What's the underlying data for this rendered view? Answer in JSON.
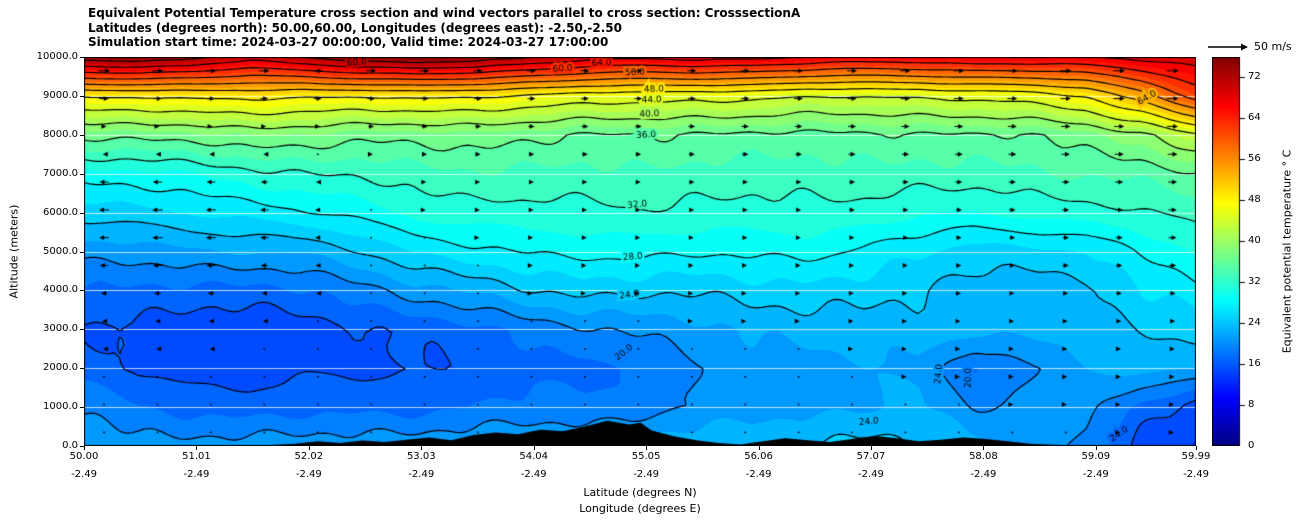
{
  "header": {
    "title_line1": "Equivalent Potential Temperature cross section and wind vectors parallel to cross section: CrosssectionA",
    "title_line2": "Latitudes (degrees north): 50.00,60.00, Longitudes (degrees east): -2.50,-2.50",
    "title_line3": "Simulation start time: 2024-03-27 00:00:00, Valid time: 2024-03-27 17:00:00"
  },
  "wind_legend": {
    "label": "50 m/s",
    "reference_speed": 50
  },
  "chart_data": {
    "type": "heatmap",
    "title": "Equivalent Potential Temperature cross section and wind vectors parallel to cross section: CrosssectionA",
    "xlabel_lat": "Latitude (degrees N)",
    "xlabel_lon": "Longitude (degrees E)",
    "ylabel": "Altitude (meters)",
    "x_axis": {
      "range": [
        50.0,
        59.99
      ],
      "lat_ticks": [
        "50.00",
        "51.01",
        "52.02",
        "53.03",
        "54.04",
        "55.05",
        "56.06",
        "57.07",
        "58.08",
        "59.09",
        "59.99"
      ],
      "lon_ticks": [
        "-2.49",
        "-2.49",
        "-2.49",
        "-2.49",
        "-2.49",
        "-2.49",
        "-2.49",
        "-2.49",
        "-2.49",
        "-2.49",
        "-2.49"
      ]
    },
    "y_axis": {
      "range": [
        0,
        10000
      ],
      "ticks": [
        "0.0",
        "1000.0",
        "2000.0",
        "3000.0",
        "4000.0",
        "5000.0",
        "6000.0",
        "7000.0",
        "8000.0",
        "9000.0",
        "10000.0"
      ]
    },
    "colorbar": {
      "label": "Equivalent potential temperature ° C",
      "ticks": [
        0,
        8,
        16,
        24,
        32,
        40,
        48,
        56,
        64,
        72
      ],
      "vmin": 0,
      "vmax": 76,
      "colormap": "jet"
    },
    "contour_levels": [
      16,
      20,
      24,
      28,
      32,
      36,
      40,
      44,
      48,
      52,
      56,
      60,
      64,
      68,
      72
    ],
    "contour_labels": [
      {
        "text": "20.0",
        "lat": 54.85,
        "alt": 2400,
        "rot": -38
      },
      {
        "text": "24.0",
        "lat": 54.9,
        "alt": 3880,
        "rot": -8
      },
      {
        "text": "28.0",
        "lat": 54.93,
        "alt": 4860,
        "rot": -5
      },
      {
        "text": "32.0",
        "lat": 54.97,
        "alt": 6200,
        "rot": -6
      },
      {
        "text": "36.0",
        "lat": 55.05,
        "alt": 7990,
        "rot": -3
      },
      {
        "text": "40.0",
        "lat": 55.08,
        "alt": 8530,
        "rot": -3
      },
      {
        "text": "44.0",
        "lat": 55.1,
        "alt": 8890,
        "rot": -2
      },
      {
        "text": "48.0",
        "lat": 55.12,
        "alt": 9170,
        "rot": -2
      },
      {
        "text": "56.0",
        "lat": 54.95,
        "alt": 9600,
        "rot": -2
      },
      {
        "text": "60.0",
        "lat": 54.3,
        "alt": 9700,
        "rot": -4
      },
      {
        "text": "64.0",
        "lat": 54.65,
        "alt": 9840,
        "rot": -3
      },
      {
        "text": "60.0",
        "lat": 52.45,
        "alt": 9860,
        "rot": -5
      },
      {
        "text": "64.0",
        "lat": 59.55,
        "alt": 8950,
        "rot": -30
      },
      {
        "text": "24.0",
        "lat": 57.05,
        "alt": 620,
        "rot": -5
      },
      {
        "text": "24.0",
        "lat": 57.68,
        "alt": 1850,
        "rot": -85
      },
      {
        "text": "20.0",
        "lat": 57.95,
        "alt": 1750,
        "rot": -90
      },
      {
        "text": "24.0",
        "lat": 59.3,
        "alt": 300,
        "rot": -35
      }
    ],
    "theta_e": {
      "units": "C",
      "lats": [
        50,
        50.5,
        51,
        51.5,
        52,
        52.5,
        53,
        53.5,
        54,
        54.5,
        55,
        55.5,
        56,
        56.5,
        57,
        57.5,
        58,
        58.5,
        59,
        59.5,
        60
      ],
      "z_levels": [
        0,
        1000,
        2000,
        3000,
        4000,
        5000,
        6000,
        7000,
        8000,
        9000,
        10000
      ],
      "values": [
        [
          21.5,
          21,
          21,
          21,
          21,
          21.5,
          21.5,
          21.5,
          22,
          22.5,
          23,
          23.5,
          24,
          24.5,
          24.5,
          24,
          23,
          21,
          19,
          15,
          14
        ],
        [
          19.5,
          18,
          17.5,
          17,
          17,
          17.5,
          17.5,
          18,
          18.5,
          18.5,
          19,
          20,
          21,
          21.5,
          22,
          22,
          20,
          20.5,
          21,
          17,
          15
        ],
        [
          17,
          15.5,
          15,
          15,
          15.5,
          15.5,
          16,
          16.5,
          17,
          17.5,
          18.5,
          20,
          21,
          21.5,
          22,
          21.5,
          17.5,
          20,
          22,
          22.5,
          22
        ],
        [
          16,
          15,
          14.5,
          14.5,
          15,
          15.5,
          16.5,
          17.5,
          18.5,
          19.5,
          20.5,
          21.5,
          22,
          22.5,
          23,
          23,
          22.5,
          22.5,
          23.5,
          24,
          24.5
        ],
        [
          18,
          17.5,
          17,
          17.5,
          18,
          19,
          21,
          22.5,
          24,
          24.5,
          24.5,
          24.5,
          25,
          25,
          25,
          24.5,
          22.5,
          22.5,
          23.5,
          26,
          27
        ],
        [
          21,
          21,
          21.5,
          22,
          22.5,
          24,
          26,
          27.5,
          28.5,
          28.5,
          28.5,
          28.5,
          28.5,
          28.5,
          27.5,
          26.5,
          25,
          25,
          26,
          28.5,
          30
        ],
        [
          25,
          25.5,
          26,
          26.5,
          28,
          29,
          30.5,
          31,
          31.5,
          31.5,
          31.5,
          31.5,
          31.5,
          31.5,
          31,
          30.5,
          30,
          30.5,
          31,
          32,
          33
        ],
        [
          29,
          29.5,
          30,
          31,
          32,
          32.5,
          33,
          33.5,
          33.5,
          33.5,
          33.5,
          33,
          33,
          33,
          33,
          33,
          33.5,
          33.5,
          34,
          34.5,
          36
        ],
        [
          36.5,
          37,
          37.5,
          38,
          37.5,
          37,
          37,
          37,
          36.5,
          36,
          36,
          35.5,
          35.5,
          35.5,
          35.5,
          35.5,
          36,
          36,
          37,
          39,
          44
        ],
        [
          48,
          48,
          49,
          49,
          48,
          48,
          49,
          48,
          47,
          46,
          46,
          45,
          45,
          44,
          44,
          44,
          45,
          46,
          48,
          54,
          62
        ],
        [
          74,
          75,
          73,
          70,
          72,
          75,
          76,
          75,
          72,
          70,
          69,
          70,
          69,
          68,
          67,
          67,
          68,
          68,
          68,
          69,
          70
        ]
      ]
    },
    "wind_u": {
      "units": "m/s",
      "reference": 50,
      "values": [
        [
          2,
          1,
          1,
          1,
          1,
          1,
          1,
          1,
          1,
          1,
          1,
          1,
          2,
          2,
          2,
          2,
          2,
          2,
          3,
          3,
          3
        ],
        [
          1,
          0,
          0,
          0,
          0,
          0,
          1,
          1,
          1,
          1,
          1,
          1,
          2,
          2,
          2,
          2,
          3,
          3,
          3,
          4,
          4
        ],
        [
          -1,
          -2,
          -2,
          -1,
          0,
          0,
          0,
          1,
          1,
          1,
          1,
          2,
          2,
          2,
          3,
          3,
          3,
          4,
          4,
          5,
          5
        ],
        [
          -4,
          -5,
          -5,
          -4,
          -2,
          -1,
          0,
          1,
          1,
          2,
          2,
          3,
          3,
          3,
          4,
          4,
          4,
          5,
          5,
          6,
          7
        ],
        [
          -8,
          -10,
          -10,
          -8,
          -5,
          -2,
          1,
          2,
          3,
          3,
          4,
          4,
          4,
          5,
          5,
          5,
          6,
          6,
          7,
          8,
          9
        ],
        [
          -13,
          -14,
          -14,
          -12,
          -8,
          -3,
          1,
          3,
          4,
          5,
          5,
          5,
          6,
          6,
          6,
          7,
          7,
          8,
          9,
          10,
          11
        ],
        [
          -14,
          -15,
          -15,
          -13,
          -9,
          -3,
          3,
          5,
          6,
          6,
          6,
          7,
          7,
          7,
          8,
          8,
          9,
          9,
          10,
          11,
          12
        ],
        [
          -12,
          -13,
          -12,
          -10,
          -6,
          2,
          5,
          6,
          7,
          7,
          7,
          8,
          8,
          8,
          9,
          9,
          10,
          10,
          11,
          12,
          13
        ],
        [
          6,
          4,
          3,
          3,
          5,
          7,
          8,
          8,
          8,
          9,
          9,
          9,
          10,
          10,
          11,
          11,
          12,
          12,
          13,
          14,
          15
        ],
        [
          14,
          13,
          12,
          11,
          11,
          11,
          11,
          11,
          11,
          11,
          11,
          11,
          12,
          12,
          13,
          13,
          14,
          14,
          15,
          16,
          17
        ],
        [
          19,
          18,
          17,
          16,
          15,
          15,
          14,
          14,
          14,
          13,
          13,
          13,
          13,
          14,
          14,
          15,
          15,
          16,
          16,
          17,
          18
        ]
      ]
    },
    "terrain": [
      [
        50,
        0
      ],
      [
        51.5,
        0
      ],
      [
        51.9,
        60
      ],
      [
        52.1,
        120
      ],
      [
        52.3,
        80
      ],
      [
        52.5,
        140
      ],
      [
        52.7,
        100
      ],
      [
        52.9,
        160
      ],
      [
        53.1,
        220
      ],
      [
        53.3,
        150
      ],
      [
        53.5,
        280
      ],
      [
        53.7,
        350
      ],
      [
        53.9,
        300
      ],
      [
        54.1,
        420
      ],
      [
        54.3,
        380
      ],
      [
        54.5,
        500
      ],
      [
        54.7,
        650
      ],
      [
        54.9,
        550
      ],
      [
        55.0,
        600
      ],
      [
        55.1,
        400
      ],
      [
        55.3,
        250
      ],
      [
        55.5,
        150
      ],
      [
        55.7,
        80
      ],
      [
        55.9,
        40
      ],
      [
        56.1,
        120
      ],
      [
        56.3,
        200
      ],
      [
        56.5,
        150
      ],
      [
        56.7,
        100
      ],
      [
        56.9,
        180
      ],
      [
        57.1,
        260
      ],
      [
        57.3,
        200
      ],
      [
        57.5,
        120
      ],
      [
        57.7,
        160
      ],
      [
        57.9,
        220
      ],
      [
        58.1,
        180
      ],
      [
        58.3,
        120
      ],
      [
        58.5,
        60
      ],
      [
        58.7,
        30
      ],
      [
        59.0,
        10
      ],
      [
        59.3,
        0
      ],
      [
        59.99,
        0
      ]
    ]
  }
}
